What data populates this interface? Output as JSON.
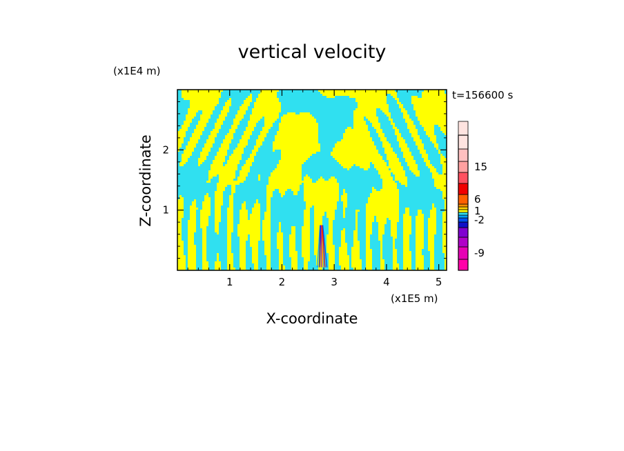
{
  "chart_data": {
    "type": "heatmap",
    "title": "vertical velocity",
    "xlabel": "X-coordinate",
    "ylabel": "Z-coordinate",
    "x_scale_label": "(x1E5 m)",
    "y_scale_label": "(x1E4 m)",
    "time_label": "t=156600 s",
    "xlim": [
      0,
      5.15
    ],
    "ylim": [
      0,
      3.0
    ],
    "x_ticks": [
      1,
      2,
      3,
      4,
      5
    ],
    "x_tick_labels": [
      "1",
      "2",
      "3",
      "4",
      "5"
    ],
    "y_ticks": [
      1,
      2
    ],
    "y_tick_labels": [
      "1",
      "2"
    ],
    "colorbar": {
      "levels": [
        {
          "label": "",
          "color": "#ff00a8"
        },
        {
          "label": "-9",
          "color": "#e600b4"
        },
        {
          "label": "",
          "color": "#b000c8"
        },
        {
          "label": "",
          "color": "#8000d0"
        },
        {
          "label": "",
          "color": "#1010c8"
        },
        {
          "label": "-2",
          "color": "#0050f0"
        },
        {
          "label": "",
          "color": "#00a0ff"
        },
        {
          "label": "",
          "color": "#30e0f0"
        },
        {
          "label": "1",
          "color": "#ffff00"
        },
        {
          "label": "",
          "color": "#ffd000"
        },
        {
          "label": "",
          "color": "#ff9000"
        },
        {
          "label": "6",
          "color": "#ff6000"
        },
        {
          "label": "",
          "color": "#f00000"
        },
        {
          "label": "",
          "color": "#ff5060"
        },
        {
          "label": "15",
          "color": "#ffa0a0"
        },
        {
          "label": "",
          "color": "#ffc0c0"
        },
        {
          "label": "",
          "color": "#ffe4e0"
        }
      ],
      "labels": [
        "15",
        "6",
        "1",
        "-2",
        "-9"
      ]
    },
    "field_colors": {
      "positive": "#ffff00",
      "negative": "#30e0f0"
    }
  }
}
